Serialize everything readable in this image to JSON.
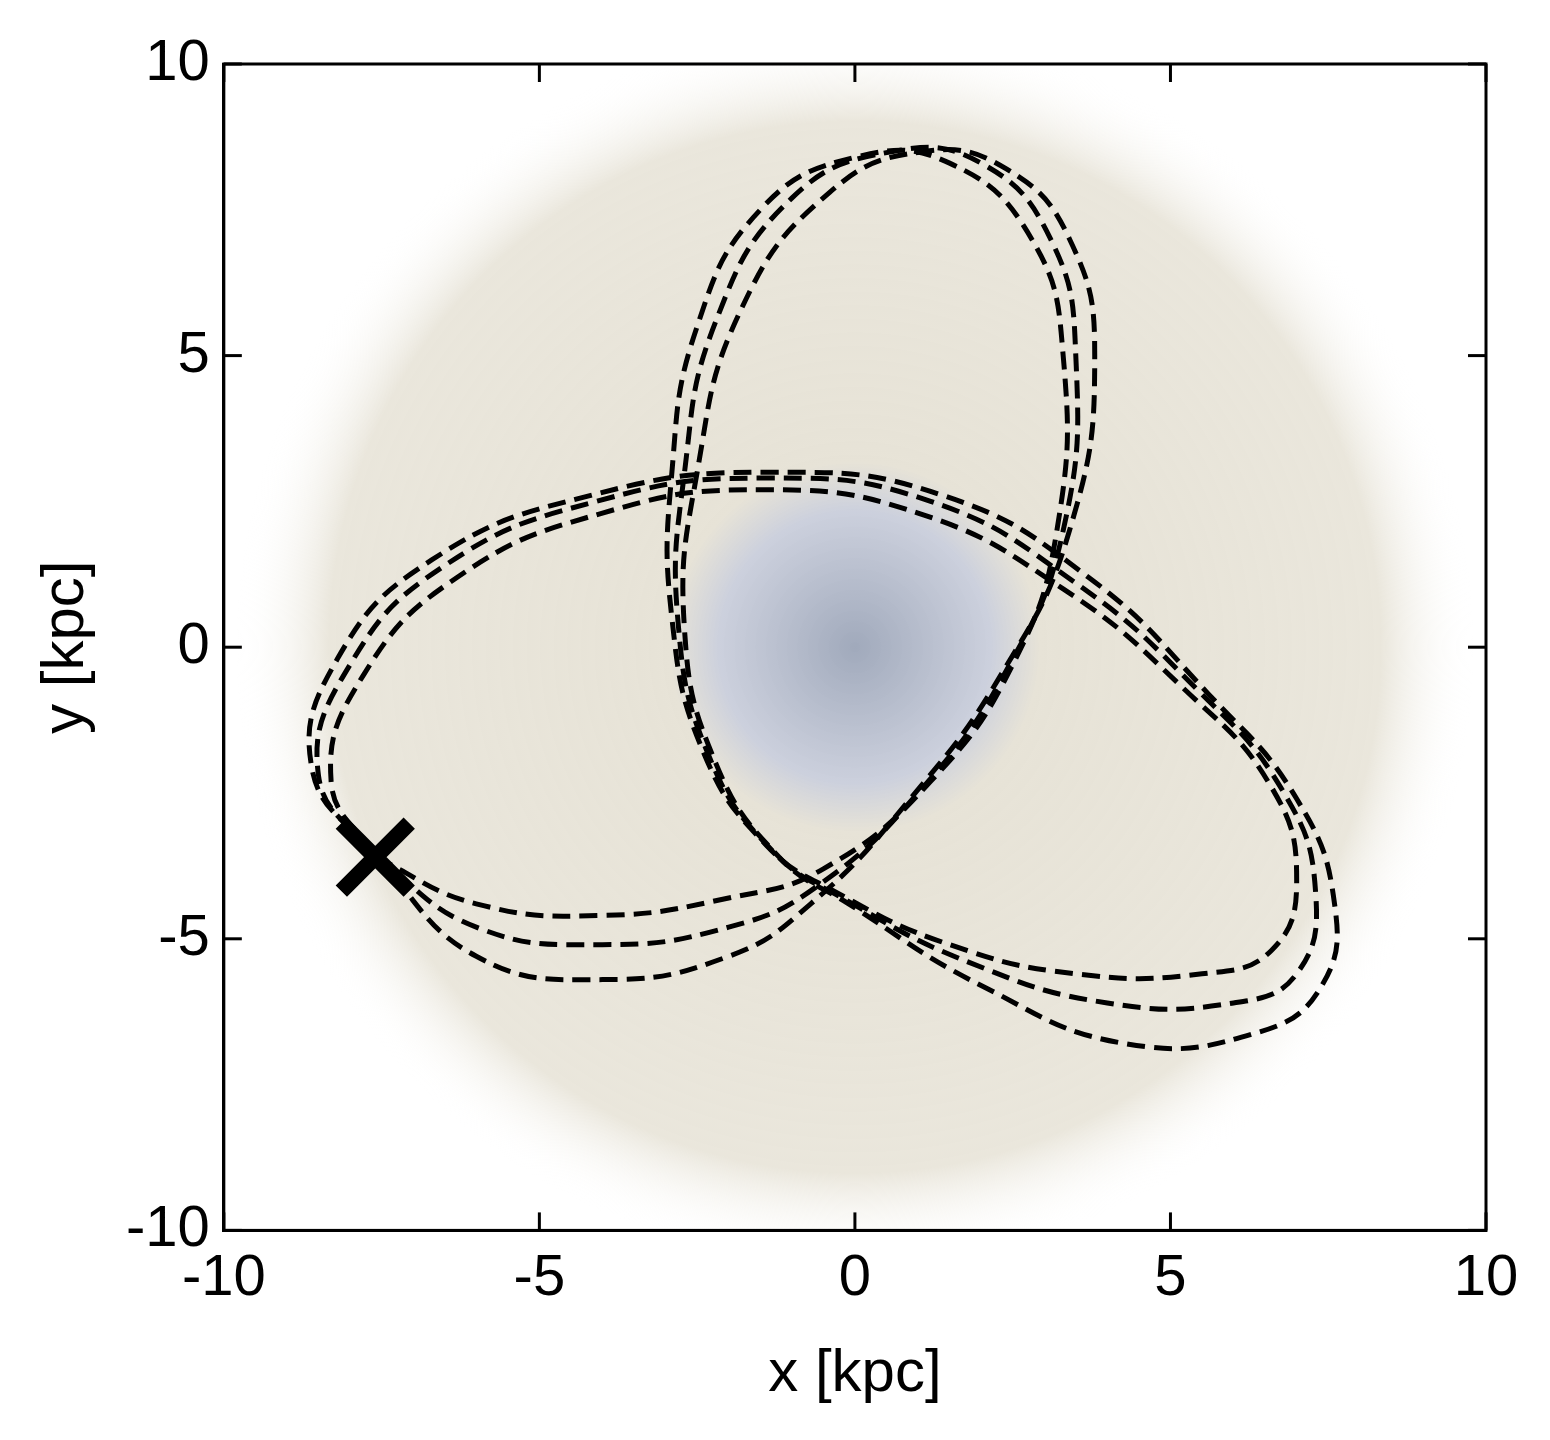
{
  "chart_data": {
    "type": "scatter",
    "x_label": "x [kpc]",
    "y_label": "y [kpc]",
    "xlim": [
      -10,
      10
    ],
    "ylim": [
      -10,
      10
    ],
    "xticks": [
      -10,
      -5,
      0,
      5,
      10
    ],
    "yticks": [
      -10,
      -5,
      0,
      5,
      10
    ],
    "grid": false,
    "series": [
      {
        "color": "#000000",
        "line_style": "dashed",
        "marker": "none",
        "x": [
          -7.6,
          -6,
          -4,
          -2,
          -0.5,
          1.2,
          2.5,
          3.2,
          3.3,
          2.8,
          1.5,
          0,
          -1.5,
          -2.5,
          -2.9,
          -2.9,
          -2.4,
          -1.4,
          -0.3,
          1.5,
          3.5,
          5.5,
          6.6,
          7.0,
          6.6,
          5.2,
          3.3,
          1,
          -1.5,
          -4,
          -6.3,
          -7.8,
          -8.3,
          -7.6
        ],
        "y": [
          -3.6,
          -4.4,
          -4.6,
          -4.3,
          -3.8,
          -2.3,
          -0.3,
          2,
          5,
          7,
          8.3,
          8.4,
          7.5,
          5.5,
          3,
          0.5,
          -1.8,
          -3.4,
          -4.2,
          -5.1,
          -5.6,
          -5.6,
          -5.2,
          -4,
          -2.4,
          -0.7,
          1,
          2.3,
          2.7,
          2.3,
          1.2,
          -0.5,
          -2.3,
          -3.6
        ]
      },
      {
        "color": "#000000",
        "line_style": "dashed",
        "marker": "none",
        "x": [
          -7.6,
          -6,
          -4,
          -2,
          -0.6,
          1.0,
          2.4,
          3.3,
          3.5,
          3.1,
          2.0,
          0.6,
          -1.0,
          -2.2,
          -2.7,
          -2.8,
          -2.3,
          -1.3,
          -0.2,
          1.8,
          4.0,
          6.0,
          7.0,
          7.3,
          6.8,
          5.4,
          3.5,
          1.2,
          -1.4,
          -4.1,
          -6.5,
          -8.0,
          -8.5,
          -7.6
        ],
        "y": [
          -3.6,
          -4.8,
          -5.1,
          -4.8,
          -4.1,
          -2.5,
          -0.4,
          2,
          5,
          7,
          8.3,
          8.5,
          7.7,
          5.6,
          3,
          0.4,
          -1.9,
          -3.5,
          -4.3,
          -5.4,
          -6.1,
          -6.1,
          -5.6,
          -4.2,
          -2.5,
          -0.7,
          1.1,
          2.5,
          2.9,
          2.5,
          1.4,
          -0.3,
          -2.2,
          -3.6
        ]
      },
      {
        "color": "#000000",
        "line_style": "dashed",
        "marker": "none",
        "x": [
          -7.6,
          -6,
          -4,
          -2,
          -0.7,
          0.8,
          2.3,
          3.4,
          3.8,
          3.4,
          2.4,
          1.1,
          -0.4,
          -1.8,
          -2.5,
          -2.7,
          -2.2,
          -1.2,
          -0.1,
          2.0,
          4.3,
          6.4,
          7.4,
          7.6,
          7.0,
          5.6,
          3.7,
          1.4,
          -1.3,
          -4.2,
          -6.7,
          -8.2,
          -8.6,
          -7.6
        ],
        "y": [
          -3.6,
          -5.3,
          -5.7,
          -5.3,
          -4.4,
          -2.7,
          -0.5,
          2,
          5,
          7,
          8.2,
          8.5,
          7.8,
          5.8,
          3,
          0.3,
          -2.0,
          -3.6,
          -4.4,
          -5.8,
          -6.8,
          -6.6,
          -5.8,
          -4.4,
          -2.6,
          -0.8,
          1.2,
          2.6,
          3.0,
          2.6,
          1.5,
          -0.2,
          -2.1,
          -3.6
        ]
      },
      {
        "color": "#000000",
        "marker": "x",
        "x": [
          -7.6
        ],
        "y": [
          -3.6
        ]
      }
    ]
  }
}
